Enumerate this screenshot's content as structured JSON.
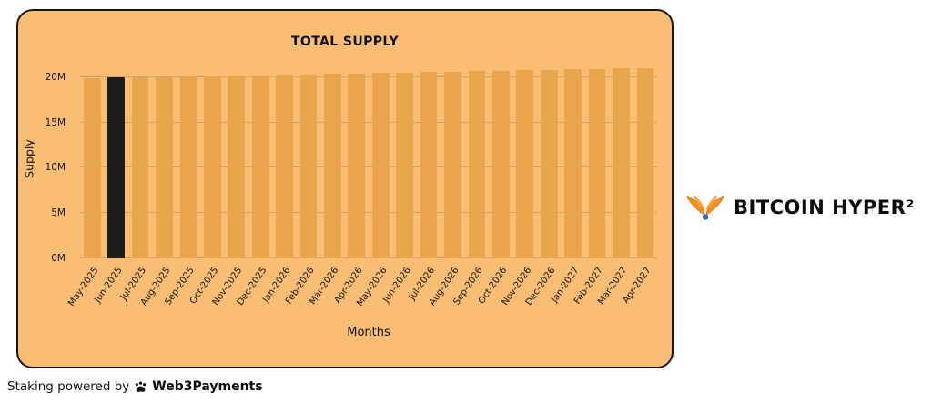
{
  "chart_data": {
    "type": "bar",
    "title": "TOTAL SUPPLY",
    "xlabel": "Months",
    "ylabel": "Supply",
    "categories": [
      "May-2025",
      "Jun-2025",
      "Jul-2025",
      "Aug-2025",
      "Sep-2025",
      "Oct-2025",
      "Nov-2025",
      "Dec-2025",
      "Jan-2026",
      "Feb-2026",
      "Mar-2026",
      "Apr-2026",
      "May-2026",
      "Jun-2026",
      "Jul-2026",
      "Aug-2026",
      "Sep-2026",
      "Oct-2026",
      "Nov-2026",
      "Dec-2026",
      "Jan-2027",
      "Feb-2027",
      "Mar-2027",
      "Apr-2027"
    ],
    "values": [
      19.9,
      19.95,
      20.0,
      20.04,
      20.09,
      20.14,
      20.19,
      20.23,
      20.28,
      20.33,
      20.38,
      20.42,
      20.47,
      20.52,
      20.57,
      20.61,
      20.66,
      20.71,
      20.76,
      20.8,
      20.85,
      20.9,
      20.95,
      21.0
    ],
    "unit": "M",
    "highlight_index": 1,
    "highlight_category": "Jun-2025",
    "ylim": [
      0,
      21.5
    ],
    "ytick_values": [
      0,
      5,
      10,
      15,
      20
    ],
    "ytick_labels": [
      "0M",
      "5M",
      "10M",
      "15M",
      "20M"
    ],
    "grid": "horizontal",
    "legend": "none",
    "colors": {
      "background": "#f9bd74",
      "bar": "#e8a54c",
      "highlight": "#1c1c1c",
      "grid": "rgba(110,110,110,0.35)"
    }
  },
  "branding": {
    "wordmark": "BITCOIN HYPER²",
    "logo_icon": "bitcoin-hyper-wings-icon",
    "icon_colors": {
      "wings": "#f5921e",
      "ball": "#2e6be6"
    }
  },
  "footer": {
    "prefix": "Staking powered by",
    "brand": "Web3Payments",
    "icon": "web3payments-paw-icon"
  }
}
